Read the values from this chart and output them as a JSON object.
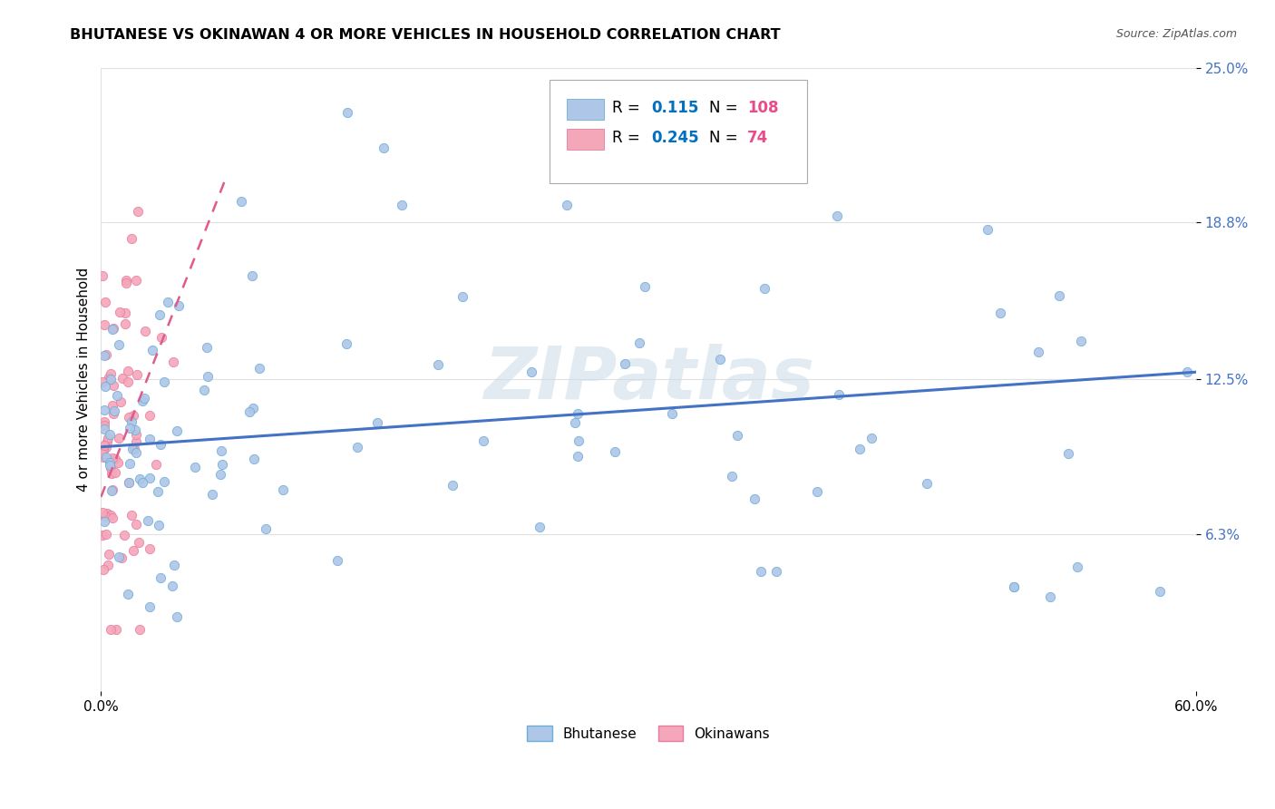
{
  "title": "BHUTANESE VS OKINAWAN 4 OR MORE VEHICLES IN HOUSEHOLD CORRELATION CHART",
  "source": "Source: ZipAtlas.com",
  "ylabel_label": "4 or more Vehicles in Household",
  "xmin": 0.0,
  "xmax": 0.6,
  "ymin": 0.0,
  "ymax": 0.25,
  "ytick_positions": [
    0.063,
    0.125,
    0.188,
    0.25
  ],
  "ytick_labels": [
    "6.3%",
    "12.5%",
    "18.8%",
    "25.0%"
  ],
  "xtick_positions": [
    0.0,
    0.6
  ],
  "xtick_labels": [
    "0.0%",
    "60.0%"
  ],
  "bhutanese_color": "#aec6e8",
  "bhutanese_color_dark": "#6baed6",
  "okinawan_color": "#f4a7b9",
  "okinawan_color_dark": "#e87ca0",
  "trendline_blue": "#4472c4",
  "trendline_pink": "#e05a8a",
  "legend_R_color": "#0070c0",
  "legend_N_color": "#e84c8b",
  "watermark": "ZIPatlas",
  "bhutanese_R": 0.115,
  "bhutanese_N": 108,
  "okinawan_R": 0.245,
  "okinawan_N": 74,
  "blue_trend_x0": 0.0,
  "blue_trend_x1": 0.6,
  "blue_trend_y0": 0.098,
  "blue_trend_y1": 0.128,
  "pink_trend_x0": 0.0,
  "pink_trend_x1": 0.068,
  "pink_trend_y0": 0.078,
  "pink_trend_y1": 0.205
}
